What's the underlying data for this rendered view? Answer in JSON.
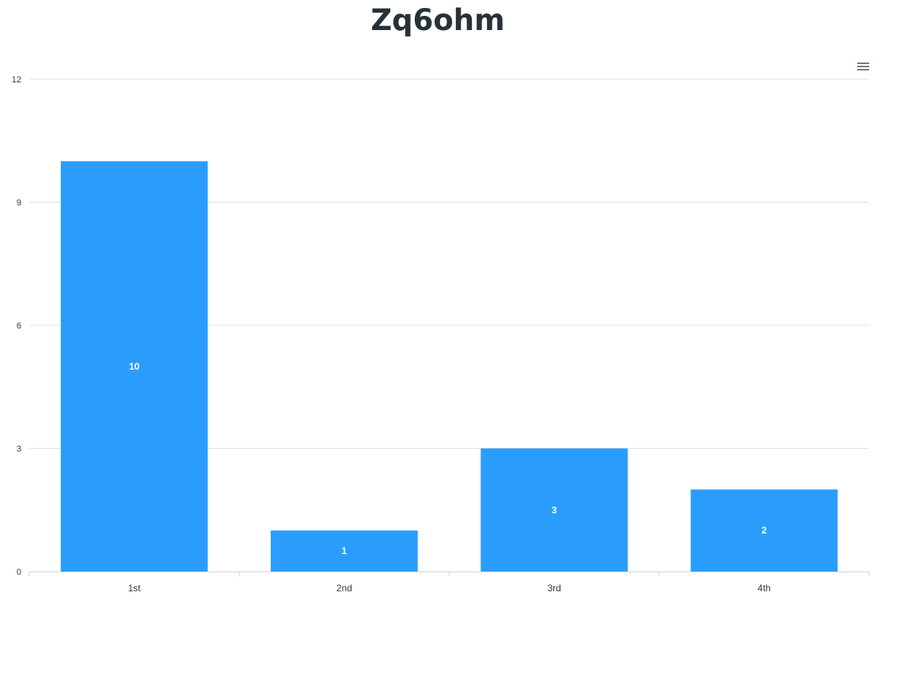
{
  "chart_data": {
    "type": "bar",
    "title": "Zq6ohm",
    "categories": [
      "1st",
      "2nd",
      "3rd",
      "4th"
    ],
    "series": [
      {
        "values": [
          10,
          1,
          3,
          2
        ]
      }
    ],
    "ylim": [
      0,
      12
    ],
    "yticks": [
      0,
      3,
      6,
      9,
      12
    ],
    "grid": true,
    "bar_color": "#2a9dfc",
    "data_labels": true
  },
  "toolbar": {
    "menu_icon": "hamburger-menu-icon"
  }
}
